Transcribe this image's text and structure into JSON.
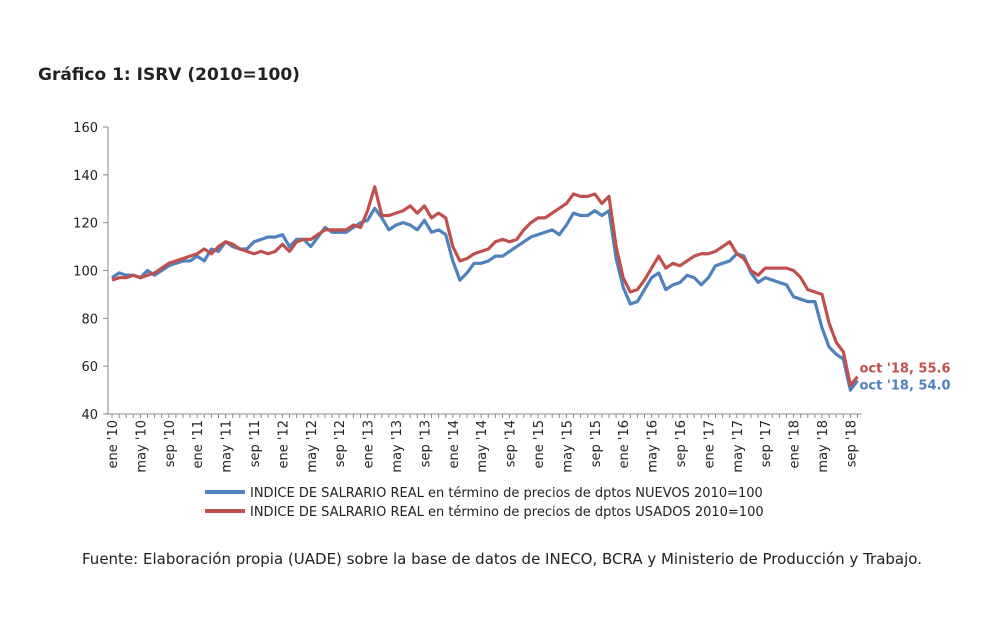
{
  "chart_data": {
    "type": "line",
    "title": "Gráfico 1: ISRV (2010=100)",
    "categories": [
      "ene '10",
      null,
      null,
      null,
      "may '10",
      null,
      null,
      null,
      "sep '10",
      null,
      null,
      null,
      "ene '11",
      null,
      null,
      null,
      "may '11",
      null,
      null,
      null,
      "sep '11",
      null,
      null,
      null,
      "ene '12",
      null,
      null,
      null,
      "may '12",
      null,
      null,
      null,
      "sep '12",
      null,
      null,
      null,
      "ene '13",
      null,
      null,
      null,
      "may '13",
      null,
      null,
      null,
      "sep '13",
      null,
      null,
      null,
      "ene '14",
      null,
      null,
      null,
      "may '14",
      null,
      null,
      null,
      "sep '14",
      null,
      null,
      null,
      "ene '15",
      null,
      null,
      null,
      "may '15",
      null,
      null,
      null,
      "sep '15",
      null,
      null,
      null,
      "ene '16",
      null,
      null,
      null,
      "may '16",
      null,
      null,
      null,
      "sep '16",
      null,
      null,
      null,
      "ene '17",
      null,
      null,
      null,
      "may '17",
      null,
      null,
      null,
      "sep '17",
      null,
      null,
      null,
      "ene '18",
      null,
      null,
      null,
      "may '18",
      null,
      null,
      null,
      "sep '18",
      null
    ],
    "series": [
      {
        "name": "INDICE DE SALRARIO REAL en término de precios de dptos NUEVOS 2010=100",
        "color": "#4f81bd",
        "values": [
          97,
          99,
          98,
          98,
          97,
          100,
          98,
          100,
          102,
          103,
          104,
          104,
          106,
          104,
          109,
          108,
          112,
          110,
          109,
          109,
          112,
          113,
          114,
          114,
          115,
          110,
          113,
          113,
          110,
          114,
          118,
          116,
          116,
          116,
          118,
          120,
          121,
          126,
          122,
          117,
          119,
          120,
          119,
          117,
          121,
          116,
          117,
          115,
          104,
          96,
          99,
          103,
          103,
          104,
          106,
          106,
          108,
          110,
          112,
          114,
          115,
          116,
          117,
          115,
          119,
          124,
          123,
          123,
          125,
          123,
          125,
          105,
          93,
          86,
          87,
          92,
          97,
          99,
          92,
          94,
          95,
          98,
          97,
          94,
          97,
          102,
          103,
          104,
          107,
          106,
          99,
          95,
          97,
          96,
          95,
          94,
          89,
          88,
          87,
          87,
          76,
          68,
          65,
          63,
          50,
          54.0
        ]
      },
      {
        "name": "INDICE DE SALRARIO REAL en término de precios de dptos USADOS 2010=100",
        "color": "#c0504d",
        "values": [
          96,
          97,
          97,
          98,
          97,
          98,
          99,
          101,
          103,
          104,
          105,
          106,
          107,
          109,
          107,
          110,
          112,
          111,
          109,
          108,
          107,
          108,
          107,
          108,
          111,
          108,
          112,
          113,
          113,
          115,
          117,
          117,
          117,
          117,
          119,
          118,
          125,
          135,
          123,
          123,
          124,
          125,
          127,
          124,
          127,
          122,
          124,
          122,
          110,
          104,
          105,
          107,
          108,
          109,
          112,
          113,
          112,
          113,
          117,
          120,
          122,
          122,
          124,
          126,
          128,
          132,
          131,
          131,
          132,
          128,
          131,
          110,
          97,
          91,
          92,
          96,
          101,
          106,
          101,
          103,
          102,
          104,
          106,
          107,
          107,
          108,
          110,
          112,
          107,
          105,
          100,
          98,
          101,
          101,
          101,
          101,
          100,
          97,
          92,
          91,
          90,
          78,
          70,
          66,
          52,
          55.6
        ]
      }
    ],
    "annotations": [
      {
        "text": "oct '18, 55.6",
        "color": "#c0504d"
      },
      {
        "text": "oct '18, 54.0",
        "color": "#4f81bd"
      }
    ],
    "ylim": [
      40,
      160
    ],
    "yticks": [
      40,
      60,
      80,
      100,
      120,
      140,
      160
    ],
    "source": "Fuente: Elaboración propia (UADE) sobre la base de datos de INECO, BCRA y Ministerio de Producción y Trabajo."
  }
}
